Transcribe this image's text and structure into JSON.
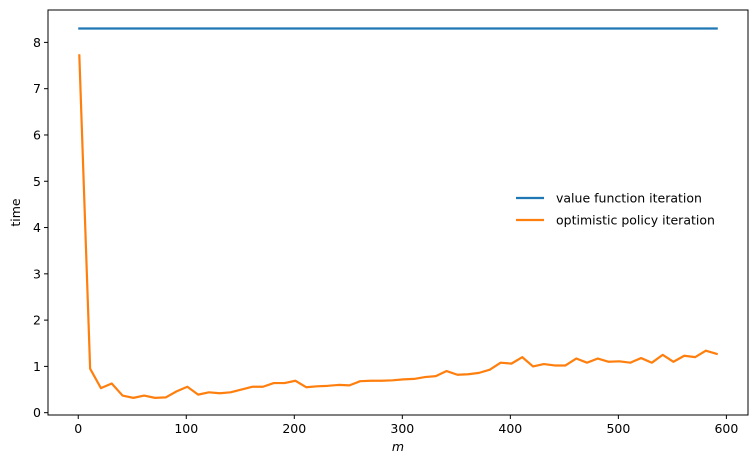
{
  "chart_data": {
    "type": "line",
    "title": "",
    "xlabel": "m",
    "ylabel": "time",
    "xlim": [
      -28,
      620
    ],
    "ylim": [
      -0.05,
      8.7
    ],
    "xticks": [
      0,
      100,
      200,
      300,
      400,
      500,
      600
    ],
    "yticks": [
      0,
      1,
      2,
      3,
      4,
      5,
      6,
      7,
      8
    ],
    "grid": false,
    "legend_position": "center-right",
    "x": [
      1,
      11,
      21,
      31,
      41,
      51,
      61,
      71,
      81,
      91,
      101,
      111,
      121,
      131,
      141,
      151,
      161,
      171,
      181,
      191,
      201,
      211,
      221,
      231,
      241,
      251,
      261,
      271,
      281,
      291,
      301,
      311,
      321,
      331,
      341,
      351,
      361,
      371,
      381,
      391,
      401,
      411,
      421,
      431,
      441,
      451,
      461,
      471,
      481,
      491,
      501,
      511,
      521,
      531,
      541,
      551,
      561,
      571,
      581,
      591
    ],
    "series": [
      {
        "name": "value function iteration",
        "color": "#1f77b4",
        "values": [
          8.3,
          8.3,
          8.3,
          8.3,
          8.3,
          8.3,
          8.3,
          8.3,
          8.3,
          8.3,
          8.3,
          8.3,
          8.3,
          8.3,
          8.3,
          8.3,
          8.3,
          8.3,
          8.3,
          8.3,
          8.3,
          8.3,
          8.3,
          8.3,
          8.3,
          8.3,
          8.3,
          8.3,
          8.3,
          8.3,
          8.3,
          8.3,
          8.3,
          8.3,
          8.3,
          8.3,
          8.3,
          8.3,
          8.3,
          8.3,
          8.3,
          8.3,
          8.3,
          8.3,
          8.3,
          8.3,
          8.3,
          8.3,
          8.3,
          8.3,
          8.3,
          8.3,
          8.3,
          8.3,
          8.3,
          8.3,
          8.3,
          8.3,
          8.3,
          8.3
        ]
      },
      {
        "name": "optimistic policy iteration",
        "color": "#ff7f0e",
        "values": [
          7.72,
          0.95,
          0.53,
          0.63,
          0.37,
          0.32,
          0.37,
          0.32,
          0.33,
          0.46,
          0.56,
          0.39,
          0.44,
          0.42,
          0.44,
          0.5,
          0.56,
          0.56,
          0.64,
          0.64,
          0.69,
          0.55,
          0.57,
          0.58,
          0.6,
          0.59,
          0.68,
          0.69,
          0.69,
          0.7,
          0.72,
          0.73,
          0.77,
          0.79,
          0.9,
          0.82,
          0.83,
          0.86,
          0.93,
          1.08,
          1.06,
          1.2,
          1.0,
          1.05,
          1.02,
          1.02,
          1.17,
          1.08,
          1.17,
          1.1,
          1.11,
          1.08,
          1.18,
          1.08,
          1.25,
          1.1,
          1.23,
          1.2,
          1.34,
          1.27
        ]
      }
    ]
  }
}
